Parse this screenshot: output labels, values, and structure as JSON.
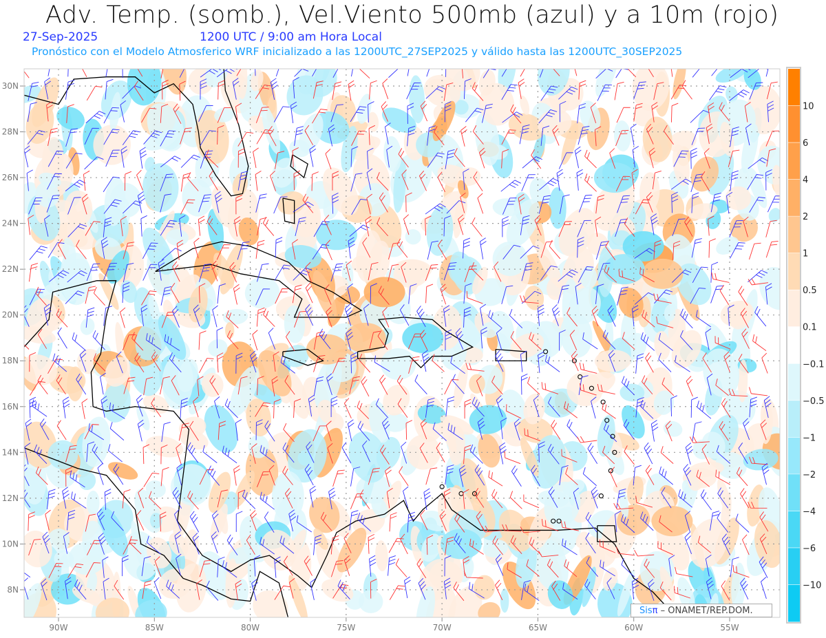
{
  "header": {
    "title": "Adv. Temp. (somb.), Vel.Viento 500mb (azul) y a 10m (rojo)",
    "date": "27-Sep-2025",
    "time": "1200 UTC / 9:00 am Hora Local",
    "subtitle": "Pronóstico con el Modelo Atmosferico WRF inicializado a las 1200UTC_27SEP2025 y válido hasta las  1200UTC_30SEP2025"
  },
  "axes": {
    "lon_labels": [
      "90W",
      "85W",
      "80W",
      "75W",
      "70W",
      "65W",
      "60W",
      "55W"
    ],
    "lon_values": [
      -90,
      -85,
      -80,
      -75,
      -70,
      -65,
      -60,
      -55
    ],
    "lat_labels": [
      "8N",
      "10N",
      "12N",
      "14N",
      "16N",
      "18N",
      "20N",
      "22N",
      "24N",
      "26N",
      "28N",
      "30N"
    ],
    "lat_values": [
      8,
      10,
      12,
      14,
      16,
      18,
      20,
      22,
      24,
      26,
      28,
      30
    ],
    "lon_range": [
      -91.8,
      -52.4
    ],
    "lat_range": [
      6.8,
      30.75
    ]
  },
  "colorbar": {
    "labels": [
      "10",
      "6",
      "4",
      "2",
      "1",
      "0.5",
      "0.1",
      "-0.1",
      "-0.5",
      "-1",
      "-2",
      "-4",
      "-6",
      "-10"
    ],
    "colors": [
      "#ff8000",
      "#ff9030",
      "#ffa04a",
      "#ffb066",
      "#ffc68f",
      "#ffdbb5",
      "#ffede0",
      "#ffffff",
      "#def7fc",
      "#b8eefa",
      "#97e8fb",
      "#70e0f8",
      "#4ad8f5",
      "#28cff3",
      "#0ecbf3"
    ]
  },
  "credit": {
    "logo_a": "Sis",
    "logo_b": "π",
    "text": "– ONAMET/REP.DOM."
  },
  "colors": {
    "wind_500mb": "#3030ff",
    "wind_10m": "#ff3030"
  }
}
